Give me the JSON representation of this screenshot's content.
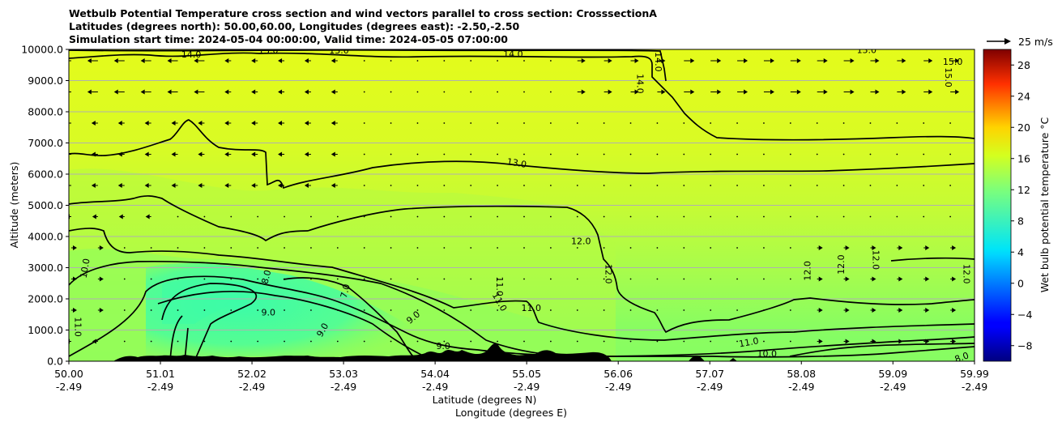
{
  "chart_data": {
    "type": "heatmap",
    "title_lines": [
      "Wetbulb Potential Temperature cross section and wind vectors parallel to cross section: CrosssectionA",
      "Latitudes (degrees north): 50.00,60.00, Longitudes (degrees east): -2.50,-2.50",
      "Simulation start time: 2024-05-04 00:00:00, Valid time: 2024-05-05 07:00:00"
    ],
    "xlabel_lat": "Latitude (degrees N)",
    "xlabel_lon": "Longitude (degrees E)",
    "ylabel": "Altitude (meters)",
    "xlim": [
      50.0,
      59.99
    ],
    "ylim": [
      0,
      10000
    ],
    "x_ticks": [
      {
        "lat": "50.00",
        "lon": "-2.49",
        "value": 50.0
      },
      {
        "lat": "51.01",
        "lon": "-2.49",
        "value": 51.01
      },
      {
        "lat": "52.02",
        "lon": "-2.49",
        "value": 52.02
      },
      {
        "lat": "53.03",
        "lon": "-2.49",
        "value": 53.03
      },
      {
        "lat": "54.04",
        "lon": "-2.49",
        "value": 54.04
      },
      {
        "lat": "55.05",
        "lon": "-2.49",
        "value": 55.05
      },
      {
        "lat": "56.06",
        "lon": "-2.49",
        "value": 56.06
      },
      {
        "lat": "57.07",
        "lon": "-2.49",
        "value": 57.07
      },
      {
        "lat": "58.08",
        "lon": "-2.49",
        "value": 58.08
      },
      {
        "lat": "59.09",
        "lon": "-2.49",
        "value": 59.09
      },
      {
        "lat": "59.99",
        "lon": "-2.49",
        "value": 59.99
      }
    ],
    "y_ticks": [
      {
        "label": "0.0",
        "value": 0
      },
      {
        "label": "1000.0",
        "value": 1000
      },
      {
        "label": "2000.0",
        "value": 2000
      },
      {
        "label": "3000.0",
        "value": 3000
      },
      {
        "label": "4000.0",
        "value": 4000
      },
      {
        "label": "5000.0",
        "value": 5000
      },
      {
        "label": "6000.0",
        "value": 6000
      },
      {
        "label": "7000.0",
        "value": 7000
      },
      {
        "label": "8000.0",
        "value": 8000
      },
      {
        "label": "9000.0",
        "value": 9000
      },
      {
        "label": "10000.0",
        "value": 10000
      }
    ],
    "grid": "horizontal",
    "colorbar": {
      "label": "Wet bulb potential temperature °C",
      "range": [
        -10,
        30
      ],
      "ticks": [
        -8,
        -4,
        0,
        4,
        8,
        12,
        16,
        20,
        24,
        28
      ],
      "tick_labels": [
        "−8",
        "−4",
        "0",
        "4",
        "8",
        "12",
        "16",
        "20",
        "24",
        "28"
      ],
      "colormap": "jet"
    },
    "wind_key_label": "25 m/s",
    "contour_labels": [
      {
        "text": "14.0",
        "x": 51.35,
        "y": 9830
      },
      {
        "text": "13.0",
        "x": 52.2,
        "y": 9960
      },
      {
        "text": "13.0",
        "x": 52.98,
        "y": 9960
      },
      {
        "text": "14.0",
        "x": 54.9,
        "y": 9850
      },
      {
        "text": "14.0",
        "x": 56.3,
        "y": 8900,
        "rot": 90
      },
      {
        "text": "14.0",
        "x": 56.5,
        "y": 9600,
        "rot": 90
      },
      {
        "text": "13.0",
        "x": 58.8,
        "y": 9970
      },
      {
        "text": "15.0",
        "x": 59.75,
        "y": 9600
      },
      {
        "text": "15.0",
        "x": 59.7,
        "y": 9100,
        "rot": 90
      },
      {
        "text": "13.0",
        "x": 54.94,
        "y": 6350,
        "rot": 10
      },
      {
        "text": "12.0",
        "x": 55.65,
        "y": 3850
      },
      {
        "text": "12.0",
        "x": 55.95,
        "y": 2800,
        "rot": 90
      },
      {
        "text": "12.0",
        "x": 58.15,
        "y": 2900,
        "rot": -90
      },
      {
        "text": "12.0",
        "x": 58.52,
        "y": 3100,
        "rot": -90
      },
      {
        "text": "12.0",
        "x": 58.9,
        "y": 3250,
        "rot": 90
      },
      {
        "text": "12.0",
        "x": 59.9,
        "y": 2800,
        "rot": 90
      },
      {
        "text": "10.0",
        "x": 50.18,
        "y": 2980,
        "rot": -80
      },
      {
        "text": "11.0",
        "x": 50.1,
        "y": 1100,
        "rot": 90
      },
      {
        "text": "8.0",
        "x": 52.18,
        "y": 2700,
        "rot": -75
      },
      {
        "text": "9.0",
        "x": 52.2,
        "y": 1560
      },
      {
        "text": "9.0",
        "x": 52.8,
        "y": 1000,
        "rot": -60
      },
      {
        "text": "7.0",
        "x": 53.05,
        "y": 2250,
        "rot": -75
      },
      {
        "text": "9.0",
        "x": 53.8,
        "y": 1400,
        "rot": -40
      },
      {
        "text": "9.0",
        "x": 54.13,
        "y": 480
      },
      {
        "text": "11.0",
        "x": 54.75,
        "y": 2400,
        "rot": 90
      },
      {
        "text": "11.0",
        "x": 54.75,
        "y": 1900,
        "rot": 60
      },
      {
        "text": "11.0",
        "x": 55.1,
        "y": 1700
      },
      {
        "text": "11.0",
        "x": 57.5,
        "y": 600,
        "rot": -10
      },
      {
        "text": "10.0",
        "x": 57.7,
        "y": 240
      },
      {
        "text": "8.0",
        "x": 59.85,
        "y": 120,
        "rot": -20
      }
    ]
  }
}
